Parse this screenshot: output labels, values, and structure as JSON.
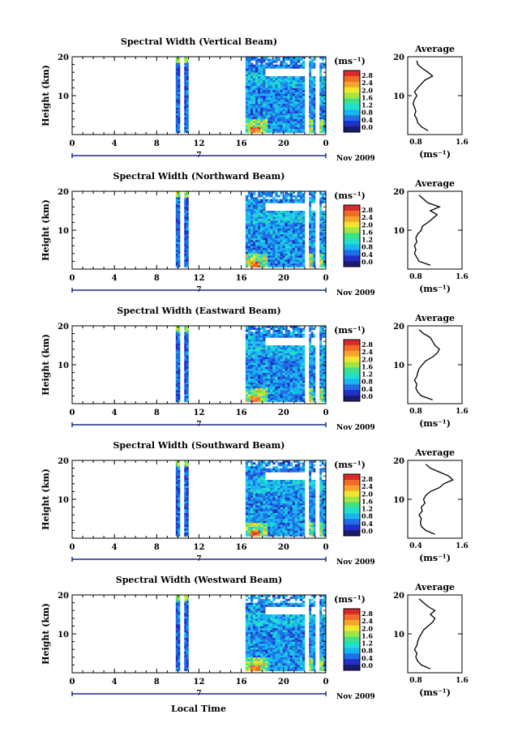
{
  "figure": {
    "xlabel": "Local Time",
    "ylabel": "Height (km)",
    "date_label": "Nov 2009",
    "day_label": "7",
    "colorbar_unit": "(ms⁻¹)",
    "colorbar_ticks": [
      "2.8",
      "2.4",
      "2.0",
      "1.6",
      "1.2",
      "0.8",
      "0.4",
      "0.0"
    ],
    "colorbar_colors": [
      "#1a1a6e",
      "#2030c8",
      "#1f6fe6",
      "#19b5f0",
      "#1fe0d0",
      "#3fe08a",
      "#a0e640",
      "#f0e630",
      "#f7a52a",
      "#f06a2a",
      "#d82a2a"
    ],
    "average_title": "Average",
    "average_xlabel": "(ms⁻¹)",
    "x_ticks": [
      "0",
      "4",
      "8",
      "12",
      "16",
      "20",
      "0"
    ],
    "y_ticks": [
      "20",
      "10"
    ]
  },
  "chart_data": [
    {
      "type": "heatmap",
      "title": "Spectral Width (Vertical Beam)",
      "xlabel": "Local Time",
      "ylabel": "Height (km)",
      "xlim": [
        0,
        24
      ],
      "ylim": [
        0,
        20
      ],
      "colorbar": {
        "label": "(ms⁻¹)",
        "range": [
          0.0,
          3.0
        ]
      },
      "data_columns": [
        [
          9.8,
          10.2
        ],
        [
          10.6,
          11.0
        ],
        [
          16.4,
          22.0
        ],
        [
          22.4,
          23.0
        ],
        [
          23.4,
          24.0
        ]
      ],
      "average_profile": {
        "xlim": [
          0.4,
          1.6
        ],
        "x_ticks": [
          "0.8",
          "1.6"
        ],
        "ylim": [
          0,
          20
        ],
        "height": [
          1,
          2,
          3,
          4,
          5,
          6,
          7,
          8,
          9,
          10,
          11,
          12,
          13,
          14,
          15,
          16,
          17,
          18,
          19
        ],
        "width": [
          0.85,
          0.7,
          0.62,
          0.6,
          0.55,
          0.58,
          0.55,
          0.52,
          0.55,
          0.6,
          0.55,
          0.62,
          0.7,
          0.78,
          0.95,
          0.85,
          0.72,
          0.62,
          0.6
        ]
      }
    },
    {
      "type": "heatmap",
      "title": "Spectral Width (Northward Beam)",
      "xlabel": "Local Time",
      "ylabel": "Height (km)",
      "xlim": [
        0,
        24
      ],
      "ylim": [
        0,
        20
      ],
      "colorbar": {
        "label": "(ms⁻¹)",
        "range": [
          0.0,
          3.0
        ]
      },
      "data_columns": [
        [
          9.8,
          10.2
        ],
        [
          10.6,
          11.0
        ],
        [
          16.4,
          22.0
        ],
        [
          22.4,
          23.0
        ],
        [
          23.4,
          24.0
        ]
      ],
      "average_profile": {
        "xlim": [
          0.4,
          1.6
        ],
        "x_ticks": [
          "0.8",
          "1.6"
        ],
        "ylim": [
          0,
          20
        ],
        "height": [
          1,
          2,
          3,
          4,
          5,
          6,
          7,
          8,
          9,
          10,
          11,
          12,
          13,
          14,
          15,
          16,
          17,
          18,
          19
        ],
        "width": [
          0.9,
          0.65,
          0.6,
          0.55,
          0.58,
          0.55,
          0.6,
          0.58,
          0.62,
          0.7,
          0.72,
          0.85,
          0.95,
          1.05,
          0.9,
          1.1,
          0.85,
          0.75,
          0.65
        ]
      }
    },
    {
      "type": "heatmap",
      "title": "Spectral Width (Eastward Beam)",
      "xlabel": "Local Time",
      "ylabel": "Height (km)",
      "xlim": [
        0,
        24
      ],
      "ylim": [
        0,
        20
      ],
      "colorbar": {
        "label": "(ms⁻¹)",
        "range": [
          0.0,
          3.0
        ]
      },
      "data_columns": [
        [
          9.8,
          10.2
        ],
        [
          10.6,
          11.0
        ],
        [
          16.4,
          22.0
        ],
        [
          22.4,
          23.0
        ],
        [
          23.4,
          24.0
        ]
      ],
      "average_profile": {
        "xlim": [
          0.4,
          1.6
        ],
        "x_ticks": [
          "0.8",
          "1.6"
        ],
        "ylim": [
          0,
          20
        ],
        "height": [
          1,
          2,
          3,
          4,
          5,
          6,
          7,
          8,
          9,
          10,
          11,
          12,
          13,
          14,
          15,
          16,
          17,
          18,
          19
        ],
        "width": [
          0.95,
          0.7,
          0.62,
          0.58,
          0.6,
          0.55,
          0.6,
          0.62,
          0.65,
          0.72,
          0.8,
          0.95,
          1.05,
          1.1,
          1.0,
          0.95,
          0.9,
          0.75,
          0.65
        ]
      }
    },
    {
      "type": "heatmap",
      "title": "Spectral Width (Southward Beam)",
      "xlabel": "Local Time",
      "ylabel": "Height (km)",
      "xlim": [
        0,
        24
      ],
      "ylim": [
        0,
        20
      ],
      "colorbar": {
        "label": "(ms⁻¹)",
        "range": [
          0.0,
          3.0
        ]
      },
      "data_columns": [
        [
          9.8,
          10.2
        ],
        [
          10.6,
          11.0
        ],
        [
          16.4,
          22.0
        ],
        [
          22.4,
          23.0
        ],
        [
          23.4,
          24.0
        ]
      ],
      "average_profile": {
        "xlim": [
          0.4,
          1.6
        ],
        "x_ticks": [
          "0.4",
          "1.6"
        ],
        "ylim": [
          0,
          20
        ],
        "height": [
          1,
          2,
          3,
          4,
          5,
          6,
          7,
          8,
          9,
          10,
          11,
          12,
          13,
          14,
          15,
          16,
          17,
          18,
          19
        ],
        "width": [
          1.0,
          0.8,
          0.7,
          0.68,
          0.7,
          0.65,
          0.72,
          0.7,
          0.78,
          0.75,
          0.8,
          0.9,
          1.1,
          1.2,
          1.4,
          1.3,
          1.1,
          0.9,
          0.8
        ]
      }
    },
    {
      "type": "heatmap",
      "title": "Spectral Width (Westward Beam)",
      "xlabel": "Local Time",
      "ylabel": "Height (km)",
      "xlim": [
        0,
        24
      ],
      "ylim": [
        0,
        20
      ],
      "colorbar": {
        "label": "(ms⁻¹)",
        "range": [
          0.0,
          3.0
        ]
      },
      "data_columns": [
        [
          9.8,
          10.2
        ],
        [
          10.6,
          11.0
        ],
        [
          16.4,
          22.0
        ],
        [
          22.4,
          23.0
        ],
        [
          23.4,
          24.0
        ]
      ],
      "average_profile": {
        "xlim": [
          0.4,
          1.6
        ],
        "x_ticks": [
          "0.8",
          "1.6"
        ],
        "ylim": [
          0,
          20
        ],
        "height": [
          1,
          2,
          3,
          4,
          5,
          6,
          7,
          8,
          9,
          10,
          11,
          12,
          13,
          14,
          15,
          16,
          17,
          18,
          19
        ],
        "width": [
          0.9,
          0.7,
          0.62,
          0.58,
          0.6,
          0.55,
          0.6,
          0.62,
          0.65,
          0.7,
          0.75,
          0.85,
          0.95,
          1.0,
          0.9,
          1.0,
          0.85,
          0.75,
          0.65
        ]
      }
    }
  ]
}
